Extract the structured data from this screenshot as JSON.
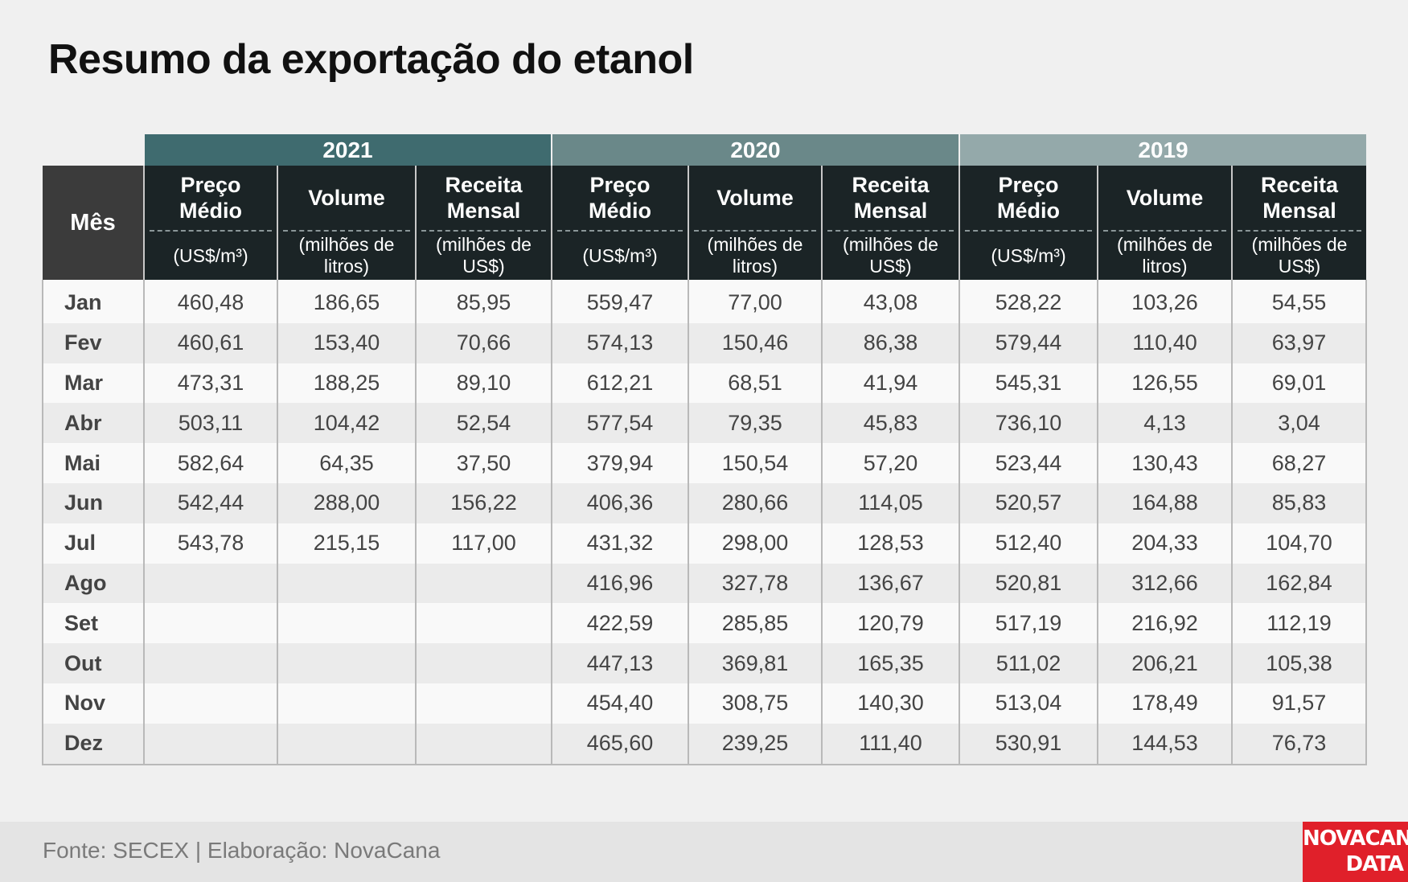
{
  "title": "Resumo da exportação do etanol",
  "colors": {
    "y2021": "#3f6b6f",
    "y2020": "#6a8889",
    "y2019": "#94a9aa",
    "header": "#1b2426",
    "logo": "#e0202a"
  },
  "header": {
    "mes": "Mês",
    "years": [
      "2021",
      "2020",
      "2019"
    ],
    "columns": [
      {
        "label": "Preço Médio",
        "unit": "(US$/m³)"
      },
      {
        "label": "Volume",
        "unit": "(milhões de litros)"
      },
      {
        "label": "Receita Mensal",
        "unit": "(milhões de US$)"
      }
    ]
  },
  "chart_data": {
    "type": "table",
    "title": "Resumo da exportação do etanol",
    "row_header": "Mês",
    "column_groups": [
      "2021",
      "2020",
      "2019"
    ],
    "columns": [
      "Preço Médio (US$/m³)",
      "Volume (milhões de litros)",
      "Receita Mensal (milhões de US$)"
    ],
    "rows": [
      {
        "month": "Jan",
        "values": [
          "460,48",
          "186,65",
          "85,95",
          "559,47",
          "77,00",
          "43,08",
          "528,22",
          "103,26",
          "54,55"
        ]
      },
      {
        "month": "Fev",
        "values": [
          "460,61",
          "153,40",
          "70,66",
          "574,13",
          "150,46",
          "86,38",
          "579,44",
          "110,40",
          "63,97"
        ]
      },
      {
        "month": "Mar",
        "values": [
          "473,31",
          "188,25",
          "89,10",
          "612,21",
          "68,51",
          "41,94",
          "545,31",
          "126,55",
          "69,01"
        ]
      },
      {
        "month": "Abr",
        "values": [
          "503,11",
          "104,42",
          "52,54",
          "577,54",
          "79,35",
          "45,83",
          "736,10",
          "4,13",
          "3,04"
        ]
      },
      {
        "month": "Mai",
        "values": [
          "582,64",
          "64,35",
          "37,50",
          "379,94",
          "150,54",
          "57,20",
          "523,44",
          "130,43",
          "68,27"
        ]
      },
      {
        "month": "Jun",
        "values": [
          "542,44",
          "288,00",
          "156,22",
          "406,36",
          "280,66",
          "114,05",
          "520,57",
          "164,88",
          "85,83"
        ]
      },
      {
        "month": "Jul",
        "values": [
          "543,78",
          "215,15",
          "117,00",
          "431,32",
          "298,00",
          "128,53",
          "512,40",
          "204,33",
          "104,70"
        ]
      },
      {
        "month": "Ago",
        "values": [
          "",
          "",
          "",
          "416,96",
          "327,78",
          "136,67",
          "520,81",
          "312,66",
          "162,84"
        ]
      },
      {
        "month": "Set",
        "values": [
          "",
          "",
          "",
          "422,59",
          "285,85",
          "120,79",
          "517,19",
          "216,92",
          "112,19"
        ]
      },
      {
        "month": "Out",
        "values": [
          "",
          "",
          "",
          "447,13",
          "369,81",
          "165,35",
          "511,02",
          "206,21",
          "105,38"
        ]
      },
      {
        "month": "Nov",
        "values": [
          "",
          "",
          "",
          "454,40",
          "308,75",
          "140,30",
          "513,04",
          "178,49",
          "91,57"
        ]
      },
      {
        "month": "Dez",
        "values": [
          "",
          "",
          "",
          "465,60",
          "239,25",
          "111,40",
          "530,91",
          "144,53",
          "76,73"
        ]
      }
    ]
  },
  "footer": {
    "source": "Fonte: SECEX | Elaboração: NovaCana",
    "logo_line1": "NOVACANA",
    "logo_line2": "DATA"
  }
}
